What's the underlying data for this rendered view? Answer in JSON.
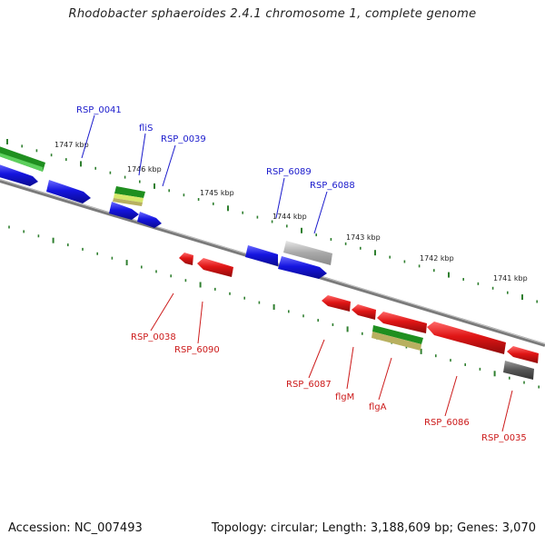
{
  "title": "Rhodobacter sphaeroides 2.4.1 chromosome 1, complete genome",
  "footer": {
    "accession": "Accession: NC_007493",
    "summary": "Topology: circular; Length: 3,188,609 bp; Genes: 3,070"
  },
  "colors": {
    "forward": "#1515e0",
    "reverse": "#e01515",
    "rna_green": "#1f8f1f",
    "rna_yellow": "#b8b060",
    "pseudo_gray": "#a8a8a8",
    "dark_gray": "#6a6a6a",
    "backbone": "#7a7a7a",
    "tick": "#2f7f2f",
    "label_forward": "#1a1acc",
    "label_reverse": "#cc1a1a"
  },
  "scale_labels": [
    "1747 kbp",
    "1746 kbp",
    "1745 kbp",
    "1744 kbp",
    "1743 kbp",
    "1742 kbp",
    "1741 kbp"
  ],
  "gene_labels_top": [
    "RSP_0041",
    "fliS",
    "RSP_0039",
    "RSP_6089",
    "RSP_6088"
  ],
  "gene_labels_bottom": [
    "RSP_0038",
    "RSP_6090",
    "RSP_6087",
    "flgM",
    "flgA",
    "RSP_6086",
    "RSP_0035"
  ]
}
